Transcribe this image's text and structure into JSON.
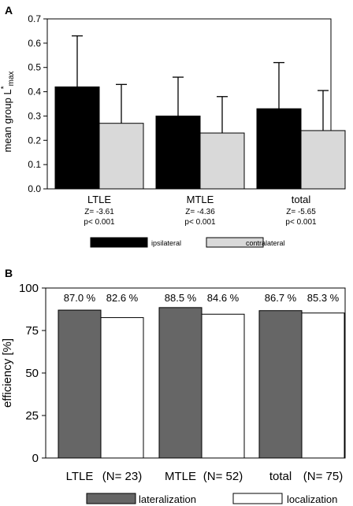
{
  "chart_data": [
    {
      "panel_label": "A",
      "type": "bar",
      "ylabel": "mean group L*max",
      "ylabel_main": "mean group L",
      "ylabel_sup": "*",
      "ylabel_sub": "max",
      "ylim": [
        0,
        0.7
      ],
      "yticks": [
        "0.0",
        "0.1",
        "0.2",
        "0.3",
        "0.4",
        "0.5",
        "0.6",
        "0.7"
      ],
      "categories": [
        "LTLE",
        "MTLE",
        "total"
      ],
      "stats": [
        {
          "z": "Z= -3.61",
          "p": "p< 0.001"
        },
        {
          "z": "Z= -4.36",
          "p": "p< 0.001"
        },
        {
          "z": "Z= -5.65",
          "p": "p< 0.001"
        }
      ],
      "series": [
        {
          "name": "ipsilateral",
          "color": "#000000",
          "values": [
            0.42,
            0.3,
            0.33
          ],
          "error": [
            0.21,
            0.16,
            0.19
          ]
        },
        {
          "name": "contralateral",
          "color": "#d9d9d9",
          "values": [
            0.27,
            0.23,
            0.24
          ],
          "error": [
            0.16,
            0.15,
            0.165
          ]
        }
      ],
      "legend_position": "bottom"
    },
    {
      "panel_label": "B",
      "type": "bar",
      "ylabel": "efficiency [%]",
      "ylim": [
        0,
        100
      ],
      "yticks": [
        "0",
        "25",
        "50",
        "75",
        "100"
      ],
      "categories": [
        "LTLE",
        "MTLE",
        "total"
      ],
      "group_n": [
        "(N= 23)",
        "(N= 52)",
        "(N= 75)"
      ],
      "series": [
        {
          "name": "lateralization",
          "color": "#666666",
          "values": [
            87.0,
            88.5,
            86.7
          ],
          "labels": [
            "87.0 %",
            "88.5 %",
            "86.7 %"
          ]
        },
        {
          "name": "localization",
          "color": "#ffffff",
          "values": [
            82.6,
            84.6,
            85.3
          ],
          "labels": [
            "82.6 %",
            "84.6 %",
            "85.3 %"
          ]
        }
      ],
      "legend_position": "bottom"
    }
  ]
}
